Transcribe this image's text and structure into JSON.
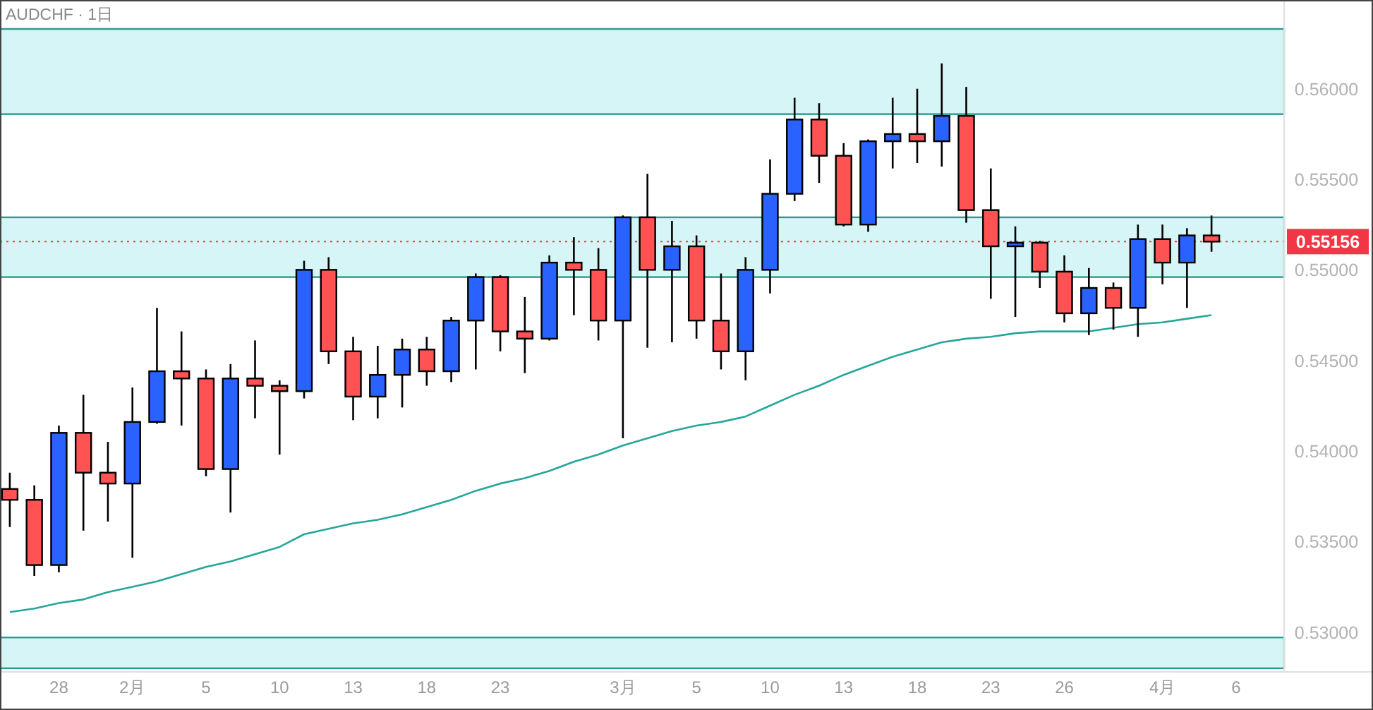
{
  "chart_data": {
    "type": "candlestick",
    "title": "AUDCHF · 1日",
    "categories": [
      null,
      null,
      "28",
      null,
      null,
      "2月",
      null,
      null,
      "5",
      null,
      null,
      "10",
      null,
      null,
      "13",
      null,
      null,
      "18",
      null,
      null,
      "23",
      null,
      null,
      null,
      null,
      "3月",
      null,
      null,
      "5",
      null,
      null,
      "10",
      null,
      null,
      "13",
      null,
      null,
      "18",
      null,
      null,
      "23",
      null,
      null,
      "26",
      null,
      null,
      null,
      "4月",
      null,
      null,
      "6"
    ],
    "ohlc": [
      [
        0.5379,
        0.5388,
        0.5358,
        0.5373
      ],
      [
        0.5373,
        0.5381,
        0.5331,
        0.5337
      ],
      [
        0.5337,
        0.5414,
        0.5333,
        0.541
      ],
      [
        0.541,
        0.5431,
        0.5356,
        0.5388
      ],
      [
        0.5388,
        0.5405,
        0.5361,
        0.5382
      ],
      [
        0.5382,
        0.5435,
        0.5341,
        0.5416
      ],
      [
        0.5416,
        0.5479,
        0.5415,
        0.5444
      ],
      [
        0.5444,
        0.5466,
        0.5414,
        0.544
      ],
      [
        0.544,
        0.5445,
        0.5386,
        0.539
      ],
      [
        0.539,
        0.5448,
        0.5366,
        0.544
      ],
      [
        0.544,
        0.5461,
        0.5418,
        0.5436
      ],
      [
        0.5436,
        0.5439,
        0.5398,
        0.5433
      ],
      [
        0.5433,
        0.5505,
        0.5429,
        0.55
      ],
      [
        0.55,
        0.5507,
        0.5448,
        0.5455
      ],
      [
        0.5455,
        0.5463,
        0.5417,
        0.543
      ],
      [
        0.543,
        0.5458,
        0.5418,
        0.5442
      ],
      [
        0.5442,
        0.5462,
        0.5424,
        0.5456
      ],
      [
        0.5456,
        0.5463,
        0.5436,
        0.5444
      ],
      [
        0.5444,
        0.5474,
        0.5438,
        0.5472
      ],
      [
        0.5472,
        0.5498,
        0.5445,
        0.5496
      ],
      [
        0.5496,
        0.5497,
        0.5455,
        0.5466
      ],
      [
        0.5466,
        0.5485,
        0.5443,
        0.5462
      ],
      [
        0.5462,
        0.5508,
        0.5461,
        0.5504
      ],
      [
        0.5504,
        0.5518,
        0.5475,
        0.55
      ],
      [
        0.55,
        0.5512,
        0.5461,
        0.5472
      ],
      [
        0.5472,
        0.553,
        0.5407,
        0.5529
      ],
      [
        0.5529,
        0.5553,
        0.5457,
        0.55
      ],
      [
        0.55,
        0.5527,
        0.546,
        0.5513
      ],
      [
        0.5513,
        0.5519,
        0.5462,
        0.5472
      ],
      [
        0.5472,
        0.5498,
        0.5445,
        0.5455
      ],
      [
        0.5455,
        0.5507,
        0.5439,
        0.55
      ],
      [
        0.55,
        0.5561,
        0.5487,
        0.5542
      ],
      [
        0.5542,
        0.5595,
        0.5538,
        0.5583
      ],
      [
        0.5583,
        0.5592,
        0.5548,
        0.5563
      ],
      [
        0.5563,
        0.557,
        0.5524,
        0.5525
      ],
      [
        0.5525,
        0.5572,
        0.5521,
        0.5571
      ],
      [
        0.5571,
        0.5595,
        0.5556,
        0.5575
      ],
      [
        0.5575,
        0.56,
        0.5559,
        0.5571
      ],
      [
        0.5571,
        0.5614,
        0.5557,
        0.5585
      ],
      [
        0.5585,
        0.5601,
        0.5526,
        0.5533
      ],
      [
        0.5533,
        0.5556,
        0.5484,
        0.5513
      ],
      [
        0.5513,
        0.5524,
        0.5474,
        0.5515
      ],
      [
        0.5515,
        0.5516,
        0.549,
        0.5499
      ],
      [
        0.5499,
        0.5508,
        0.5471,
        0.5476
      ],
      [
        0.5476,
        0.5501,
        0.5464,
        0.549
      ],
      [
        0.549,
        0.5493,
        0.5467,
        0.5479
      ],
      [
        0.5479,
        0.5525,
        0.5463,
        0.5517
      ],
      [
        0.5517,
        0.5525,
        0.5492,
        0.5504
      ],
      [
        0.5504,
        0.5523,
        0.5479,
        0.5519
      ],
      [
        0.5519,
        0.553,
        0.551,
        0.55156
      ],
      null
    ],
    "colors": [
      "#ff5252",
      "#ff5252",
      "#2962ff",
      "#ff5252",
      "#ff5252",
      "#2962ff",
      "#2962ff",
      "#ff5252",
      "#ff5252",
      "#2962ff",
      "#ff5252",
      "#ff5252",
      "#2962ff",
      "#ff5252",
      "#ff5252",
      "#2962ff",
      "#2962ff",
      "#ff5252",
      "#2962ff",
      "#2962ff",
      "#ff5252",
      "#ff5252",
      "#2962ff",
      "#ff5252",
      "#ff5252",
      "#2962ff",
      "#ff5252",
      "#2962ff",
      "#ff5252",
      "#ff5252",
      "#2962ff",
      "#2962ff",
      "#2962ff",
      "#ff5252",
      "#ff5252",
      "#2962ff",
      "#2962ff",
      "#ff5252",
      "#2962ff",
      "#ff5252",
      "#ff5252",
      "#2962ff",
      "#ff5252",
      "#ff5252",
      "#2962ff",
      "#ff5252",
      "#2962ff",
      "#ff5252",
      "#2962ff",
      "#ff5252",
      null
    ],
    "series": [
      {
        "type": "line",
        "color": "#26a69a",
        "values": [
          0.5311,
          0.5313,
          0.5316,
          0.5318,
          0.5322,
          0.5325,
          0.5328,
          0.5332,
          0.5336,
          0.5339,
          0.5343,
          0.5347,
          0.5354,
          0.5357,
          0.536,
          0.5362,
          0.5365,
          0.5369,
          0.5373,
          0.5378,
          0.5382,
          0.5385,
          0.5389,
          0.5394,
          0.5398,
          0.5403,
          0.5407,
          0.5411,
          0.5414,
          0.5416,
          0.5419,
          0.5425,
          0.5431,
          0.5436,
          0.5442,
          0.5447,
          0.5452,
          0.5456,
          0.546,
          0.5462,
          0.5463,
          0.5465,
          0.5466,
          0.5466,
          0.5466,
          0.5468,
          0.547,
          0.5471,
          0.5473,
          0.5475,
          null
        ]
      }
    ],
    "ylim": [
      0.5278,
      0.5649
    ],
    "yticks": [
      {
        "value": 0.53,
        "label": "0.53000"
      },
      {
        "value": 0.535,
        "label": "0.53500"
      },
      {
        "value": 0.54,
        "label": "0.54000"
      },
      {
        "value": 0.545,
        "label": "0.54500"
      },
      {
        "value": 0.55,
        "label": "0.55000"
      },
      {
        "value": 0.555,
        "label": "0.55500"
      },
      {
        "value": 0.56,
        "label": "0.56000"
      }
    ],
    "bands": [
      {
        "axis": "y",
        "from": 0.5586,
        "to": 0.5633,
        "color": "#d6f5f7"
      },
      {
        "axis": "y",
        "from": 0.5496,
        "to": 0.5529,
        "color": "#d6f5f7"
      },
      {
        "axis": "y",
        "from": 0.528,
        "to": 0.5297,
        "color": "#d6f5f7"
      }
    ],
    "ref_lines": [
      {
        "axis": "y",
        "value": 0.55156,
        "label": "0.55156",
        "color": "#f23645",
        "line_style": "dotted"
      }
    ]
  }
}
